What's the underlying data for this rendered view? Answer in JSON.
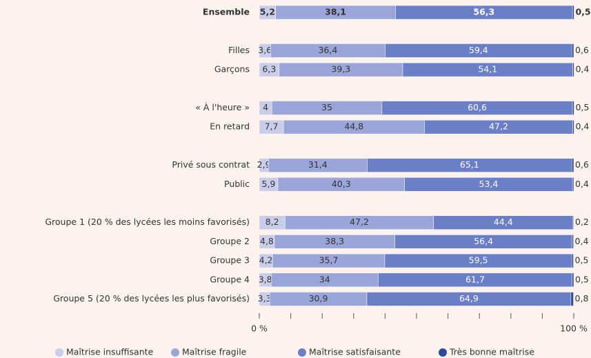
{
  "chart_data": {
    "type": "stacked_bar_horizontal",
    "categories": [
      "Ensemble",
      "Filles",
      "Garçons",
      "« À l'heure »",
      "En retard",
      "Privé sous contrat",
      "Public",
      "Groupe 1 (20 % des lycées les moins favorisés)",
      "Groupe 2",
      "Groupe 3",
      "Groupe 4",
      "Groupe 5 (20 % des lycées les plus favorisés)"
    ],
    "series": [
      {
        "name": "Maîtrise insuffisante",
        "color": "#c9cde9",
        "values": [
          5.2,
          3.6,
          6.3,
          4,
          7.7,
          2.9,
          5.9,
          8.2,
          4.8,
          4.2,
          3.8,
          3.3
        ],
        "value_labels": [
          "5,2",
          "3,6",
          "6,3",
          "4",
          "7,7",
          "2,9",
          "5,9",
          "8,2",
          "4,8",
          "4,2",
          "3,8",
          "3,3"
        ]
      },
      {
        "name": "Maîtrise fragile",
        "color": "#9aa5d9",
        "values": [
          38.1,
          36.4,
          39.3,
          35,
          44.8,
          31.4,
          40.3,
          47.2,
          38.3,
          35.7,
          34,
          30.9
        ],
        "value_labels": [
          "38,1",
          "36,4",
          "39,3",
          "35",
          "44,8",
          "31,4",
          "40,3",
          "47,2",
          "38,3",
          "35,7",
          "34",
          "30,9"
        ]
      },
      {
        "name": "Maîtrise satisfaisante",
        "color": "#6b7fc9",
        "values": [
          56.3,
          59.4,
          54.1,
          60.6,
          47.2,
          65.1,
          53.4,
          44.4,
          56.4,
          59.5,
          61.7,
          64.9
        ],
        "value_labels": [
          "56,3",
          "59,4",
          "54,1",
          "60,6",
          "47,2",
          "65,1",
          "53,4",
          "44,4",
          "56,4",
          "59,5",
          "61,7",
          "64,9"
        ]
      },
      {
        "name": "Très bonne maîtrise",
        "color": "#2e4a98",
        "values": [
          0.5,
          0.6,
          0.4,
          0.5,
          0.4,
          0.6,
          0.4,
          0.2,
          0.4,
          0.5,
          0.5,
          0.8
        ],
        "value_labels": [
          "0,5",
          "0,6",
          "0,4",
          "0,5",
          "0,4",
          "0,6",
          "0,4",
          "0,2",
          "0,4",
          "0,5",
          "0,5",
          "0,8"
        ]
      }
    ],
    "xlim": [
      0,
      100
    ],
    "xticks": [
      {
        "value": 0,
        "label": "0 %"
      },
      {
        "value": 100,
        "label": "100 %"
      }
    ],
    "xminor_ticks": [
      10,
      20,
      30,
      40,
      50,
      60,
      70,
      80,
      90
    ],
    "legend": "bottom"
  }
}
